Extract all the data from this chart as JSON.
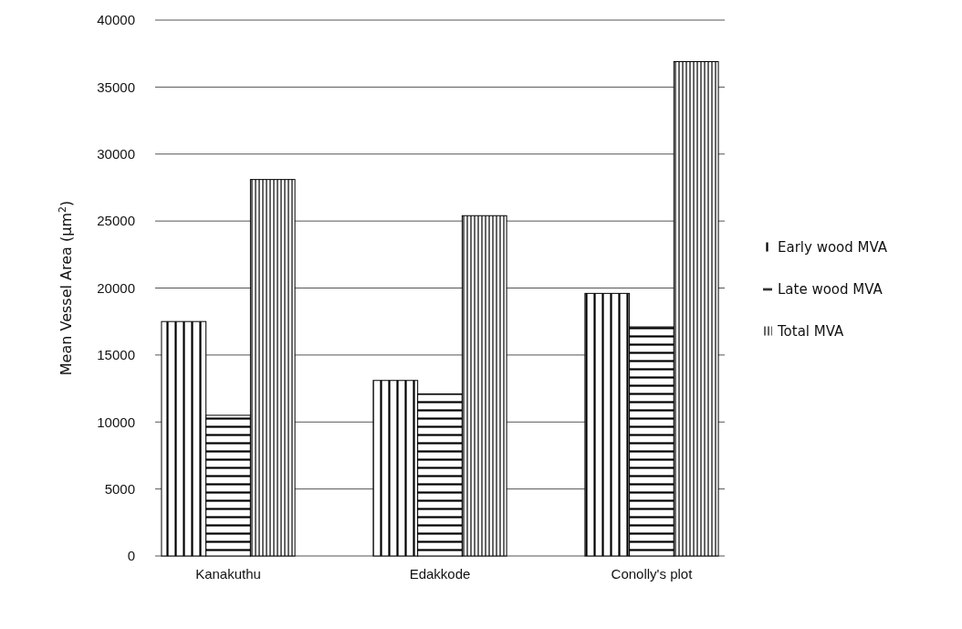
{
  "chart_data": {
    "type": "bar",
    "ylabel": "Mean Vessel Area (µm$^{2}$)",
    "categories": [
      "Kanakuthu",
      "Edakkode",
      "Conolly's plot"
    ],
    "series": [
      {
        "name": "Early wood MVA",
        "color": "#000000",
        "values": [
          17500,
          13100,
          19600
        ]
      },
      {
        "name": "Late wood MVA",
        "color": "#000000",
        "values": [
          10500,
          12100,
          17100
        ]
      },
      {
        "name": "Total MVA",
        "color": "#000000",
        "values": [
          28100,
          25400,
          36900
        ]
      }
    ],
    "ylim": [
      0,
      40000
    ],
    "yticks": [
      0,
      5000,
      10000,
      15000,
      20000,
      25000,
      30000,
      35000,
      40000
    ],
    "grid": "y",
    "legend": "right"
  }
}
